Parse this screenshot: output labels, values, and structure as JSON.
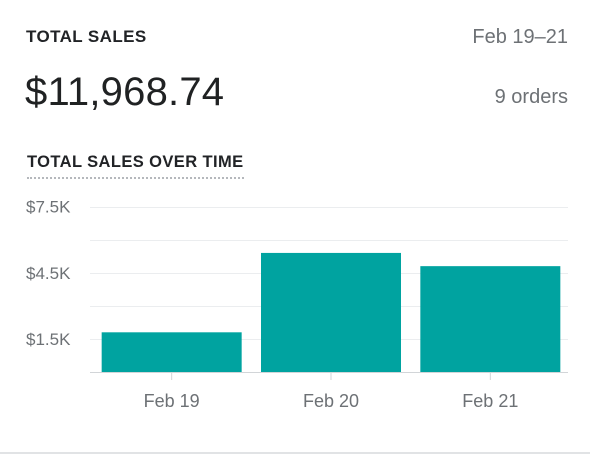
{
  "header": {
    "title": "TOTAL SALES",
    "date_range": "Feb 19–21"
  },
  "summary": {
    "total": "$11,968.74",
    "orders": "9 orders"
  },
  "section": {
    "title": "TOTAL SALES OVER TIME"
  },
  "colors": {
    "bar": "#00a3a0",
    "grid": "#ebedef",
    "axis": "#d2d5d8",
    "tick_text": "#6d7175"
  },
  "chart_data": {
    "type": "bar",
    "categories": [
      "Feb 19",
      "Feb 20",
      "Feb 21"
    ],
    "series": [
      {
        "values": [
          1800,
          5400,
          4800
        ]
      }
    ],
    "y_ticks": [
      1500,
      4500,
      7500
    ],
    "y_tick_labels": [
      "$1.5K",
      "$4.5K",
      "$7.5K"
    ],
    "ylim": [
      0,
      7500
    ],
    "grid": true,
    "title": "TOTAL SALES OVER TIME",
    "xlabel": "",
    "ylabel": ""
  }
}
